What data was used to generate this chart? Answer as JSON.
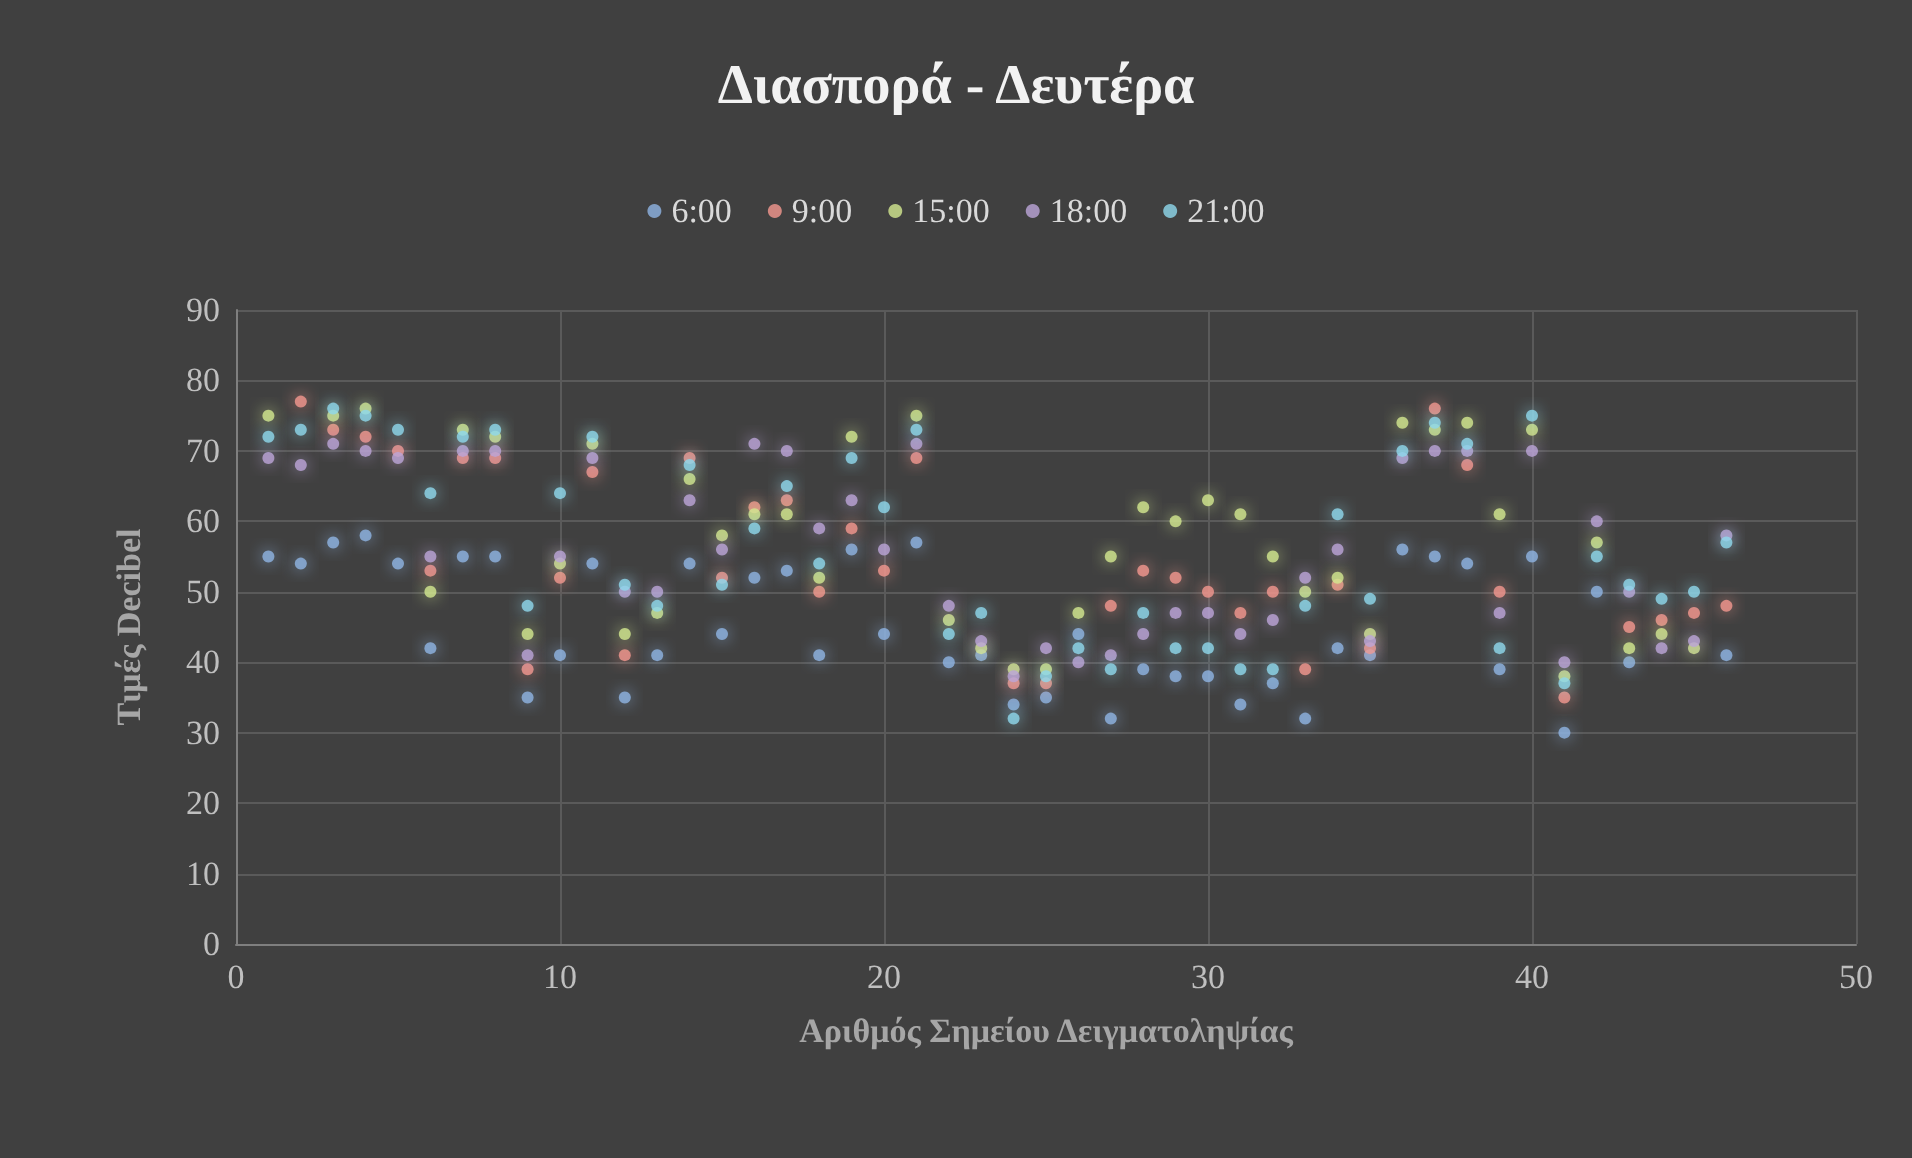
{
  "chart_data": {
    "type": "scatter",
    "title": "Διασπορά - Δευτέρα",
    "xlabel": "Αριθμός Σημείου Δειγματοληψίας",
    "ylabel": "Τιμές Decibel",
    "x": [
      1,
      2,
      3,
      4,
      5,
      6,
      7,
      8,
      9,
      10,
      11,
      12,
      13,
      14,
      15,
      16,
      17,
      18,
      19,
      20,
      21,
      22,
      23,
      24,
      25,
      26,
      27,
      28,
      29,
      30,
      31,
      32,
      33,
      34,
      35,
      36,
      37,
      38,
      39,
      40,
      41,
      42,
      43,
      44,
      45,
      46
    ],
    "series": [
      {
        "name": "6:00",
        "color": "#8eb4e3",
        "values": [
          55,
          54,
          57,
          58,
          54,
          42,
          55,
          55,
          35,
          41,
          54,
          35,
          41,
          54,
          44,
          52,
          53,
          41,
          56,
          44,
          57,
          40,
          41,
          34,
          35,
          44,
          32,
          39,
          38,
          38,
          34,
          37,
          32,
          42,
          41,
          56,
          55,
          54,
          39,
          55,
          30,
          50,
          40,
          null,
          null,
          41
        ]
      },
      {
        "name": "9:00",
        "color": "#f4978e",
        "values": [
          null,
          77,
          73,
          72,
          70,
          53,
          69,
          69,
          39,
          52,
          67,
          41,
          null,
          69,
          52,
          62,
          63,
          50,
          59,
          53,
          69,
          null,
          null,
          37,
          37,
          null,
          48,
          53,
          52,
          50,
          47,
          50,
          39,
          51,
          42,
          null,
          76,
          68,
          50,
          null,
          35,
          null,
          45,
          46,
          47,
          48
        ]
      },
      {
        "name": "15:00",
        "color": "#d3e890",
        "values": [
          75,
          null,
          75,
          76,
          null,
          50,
          73,
          72,
          44,
          54,
          71,
          44,
          47,
          66,
          58,
          61,
          61,
          52,
          72,
          null,
          75,
          46,
          42,
          39,
          39,
          47,
          55,
          62,
          60,
          63,
          61,
          55,
          50,
          52,
          44,
          74,
          73,
          74,
          61,
          73,
          38,
          57,
          42,
          44,
          42,
          null
        ]
      },
      {
        "name": "18:00",
        "color": "#bca5d8",
        "values": [
          69,
          68,
          71,
          70,
          69,
          55,
          70,
          70,
          41,
          55,
          69,
          50,
          50,
          63,
          56,
          71,
          70,
          59,
          63,
          56,
          71,
          48,
          43,
          38,
          42,
          40,
          41,
          44,
          47,
          47,
          44,
          46,
          52,
          56,
          43,
          69,
          70,
          70,
          47,
          70,
          40,
          60,
          50,
          42,
          43,
          58
        ]
      },
      {
        "name": "21:00",
        "color": "#8fd8ec",
        "values": [
          72,
          73,
          76,
          75,
          73,
          64,
          72,
          73,
          48,
          64,
          72,
          51,
          48,
          68,
          51,
          59,
          65,
          54,
          69,
          62,
          73,
          44,
          47,
          32,
          38,
          42,
          39,
          47,
          42,
          42,
          39,
          39,
          48,
          61,
          49,
          70,
          74,
          71,
          42,
          75,
          37,
          55,
          51,
          49,
          50,
          57
        ]
      }
    ],
    "xlim": [
      0,
      50
    ],
    "xticks": [
      0,
      10,
      20,
      30,
      40,
      50
    ],
    "ylim": [
      0,
      90
    ],
    "yticks": [
      0,
      10,
      20,
      30,
      40,
      50,
      60,
      70,
      80,
      90
    ],
    "grid": true,
    "legend": "top",
    "marker": "circle"
  }
}
